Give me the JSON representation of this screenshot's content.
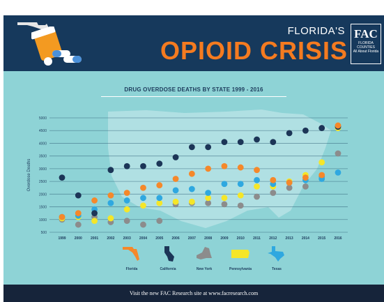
{
  "banner": {
    "subtitle": "FLORIDA'S",
    "title": "OPIOID CRISIS",
    "logo": {
      "letters": "FAC",
      "line1": "FLORIDA",
      "line2": "COUNTIES",
      "tagline": "All About Florida"
    },
    "icons": [
      "florida-state-icon",
      "pill-bottle-icon"
    ]
  },
  "footer": {
    "text": "Visit the new FAC Research site at www.facresearch.com"
  },
  "colors": {
    "Florida": "#f5882a",
    "California": "#1c3557",
    "New York": "#8c8c8c",
    "Pennsylvania": "#f5e628",
    "Texas": "#2fa8e0",
    "banner": "#16395c",
    "panel": "#8ed3d6",
    "footer": "#16243a"
  },
  "chart_data": {
    "type": "scatter",
    "title": "DRUG OVERDOSE DEATHS BY STATE 1999 - 2016",
    "ylabel": "Overdose Deaths",
    "xlabel": "",
    "ylim": [
      500,
      5000
    ],
    "yticks": [
      500,
      1000,
      1500,
      2000,
      2500,
      3000,
      3500,
      4000,
      4500,
      5000
    ],
    "categories": [
      "1999",
      "2000",
      "2001",
      "2002",
      "2003",
      "2004",
      "2005",
      "2006",
      "2007",
      "2008",
      "2009",
      "2010",
      "2011",
      "2012",
      "2013",
      "2014",
      "2015",
      "2016"
    ],
    "grid": "horizontal",
    "legend_position": "bottom",
    "series": [
      {
        "name": "Florida",
        "values": [
          1100,
          1250,
          1750,
          1950,
          2050,
          2250,
          2350,
          2600,
          2800,
          3000,
          3100,
          3050,
          2950,
          2550,
          2450,
          2650,
          2750,
          4700
        ]
      },
      {
        "name": "California",
        "values": [
          2650,
          1950,
          1250,
          2950,
          3100,
          3100,
          3200,
          3450,
          3850,
          3850,
          4050,
          4050,
          4150,
          4050,
          4400,
          4500,
          4600,
          4650
        ]
      },
      {
        "name": "New York",
        "values": [
          1000,
          800,
          1100,
          900,
          950,
          800,
          950,
          1600,
          1650,
          1650,
          1600,
          1550,
          1900,
          2050,
          2250,
          2300,
          2700,
          3600
        ]
      },
      {
        "name": "Pennsylvania",
        "values": [
          1050,
          1100,
          950,
          1050,
          1400,
          1550,
          1650,
          1700,
          1700,
          1850,
          1850,
          1950,
          2300,
          2300,
          2500,
          2750,
          3250,
          4600
        ]
      },
      {
        "name": "Texas",
        "values": [
          1100,
          1150,
          1400,
          1650,
          1750,
          1850,
          1850,
          2150,
          2200,
          2050,
          2400,
          2400,
          2550,
          2400,
          2450,
          2550,
          2600,
          2850
        ]
      }
    ]
  }
}
